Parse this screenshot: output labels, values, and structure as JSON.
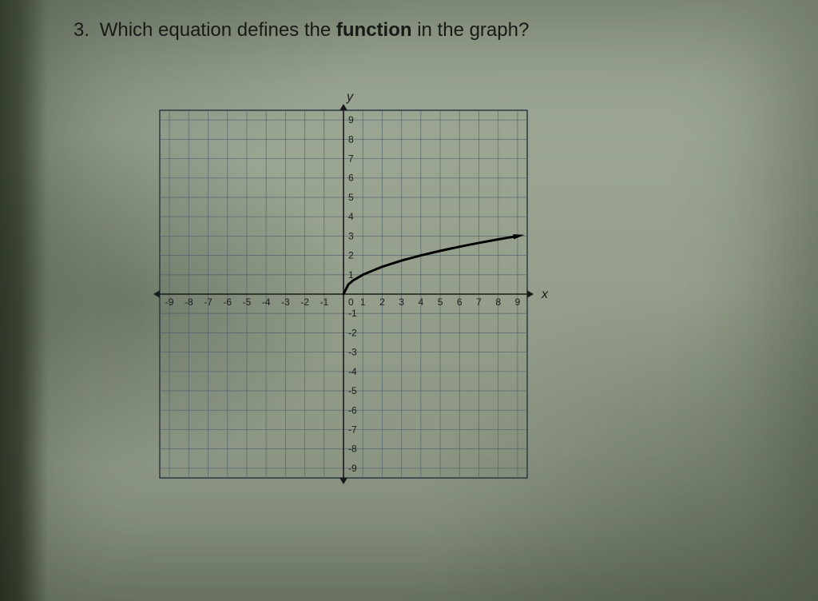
{
  "question": {
    "number": "3.",
    "text_before_bold": "Which equation defines the ",
    "bold": "function",
    "text_after_bold": " in the graph?"
  },
  "chart": {
    "type": "line",
    "xlim": [
      -9.5,
      9.5
    ],
    "ylim": [
      -9.5,
      9.5
    ],
    "xtick_step": 1,
    "ytick_step": 1,
    "xtick_labels_neg": [
      "-9",
      "-8",
      "-7",
      "-6",
      "-5",
      "-4",
      "-3",
      "-2",
      "-1"
    ],
    "xtick_labels_pos": [
      "1",
      "2",
      "3",
      "4",
      "5",
      "6",
      "7",
      "8",
      "9"
    ],
    "ytick_labels_neg": [
      "-1",
      "-2",
      "-3",
      "-4",
      "-5",
      "-6",
      "-7",
      "-8",
      "-9"
    ],
    "ytick_labels_pos": [
      "1",
      "2",
      "3",
      "4",
      "5",
      "6",
      "7",
      "8",
      "9"
    ],
    "origin_label": "0",
    "x_axis_label": "x",
    "y_axis_label": "y",
    "grid_color": "#4a5a6a",
    "border_color": "#2b3a48",
    "axis_color": "#1a1a1a",
    "tick_label_color": "#1a1a1a",
    "tick_fontsize": 12,
    "axis_label_fontsize": 16,
    "background_color": "rgba(200,210,195,0.0)",
    "curve_color": "#000000",
    "curve_width": 3,
    "curve_points_x": [
      0,
      0.25,
      0.5,
      1,
      2,
      3,
      4,
      5,
      6,
      7,
      8,
      9
    ],
    "curve_points_y": [
      0,
      0.5,
      0.707,
      1,
      1.414,
      1.732,
      2,
      2.236,
      2.449,
      2.646,
      2.828,
      3
    ],
    "arrow_size": 8
  }
}
